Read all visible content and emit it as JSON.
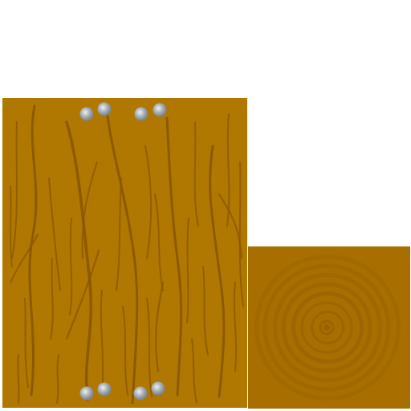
{
  "sprites": {
    "plank": {
      "name": "wood-plank-texture",
      "wood_color": "#b07800",
      "grain_color": "#8a5600",
      "nail_color": "#a8aeb6",
      "nail_highlight": "#eef2f6",
      "nail_count": 8
    },
    "log_end": {
      "name": "log-end-texture",
      "base_color": "#a86e00",
      "ring_color": "#9a6300",
      "ring_count": 8
    }
  }
}
